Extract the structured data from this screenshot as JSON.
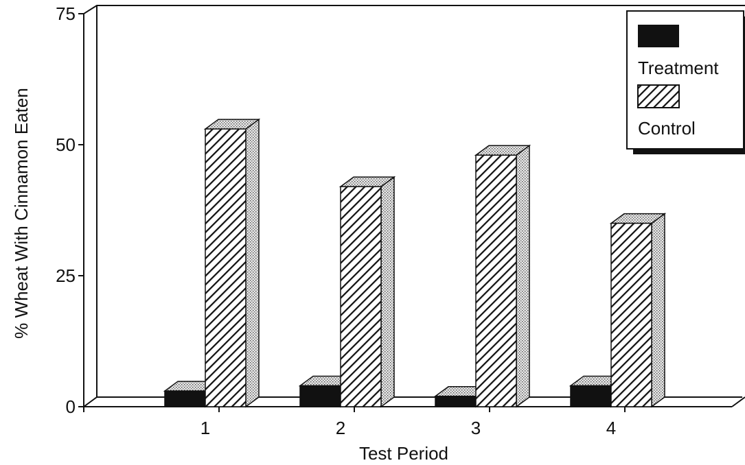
{
  "chart_data": {
    "type": "bar",
    "title": "",
    "xlabel": "Test Period",
    "ylabel": "% Wheat With Cinnamon Eaten",
    "categories": [
      "1",
      "2",
      "3",
      "4"
    ],
    "ylim": [
      0,
      75
    ],
    "yticks": [
      0,
      25,
      50,
      75
    ],
    "grid": false,
    "legend_position": "top-right",
    "style": "3d-bar",
    "series": [
      {
        "name": "Treatment",
        "values": [
          3,
          4,
          2,
          4
        ],
        "color": "#111111",
        "pattern": "solid"
      },
      {
        "name": "Control",
        "values": [
          53,
          42,
          48,
          35
        ],
        "color": "#ffffff",
        "pattern": "diagonal-hatch"
      }
    ]
  }
}
